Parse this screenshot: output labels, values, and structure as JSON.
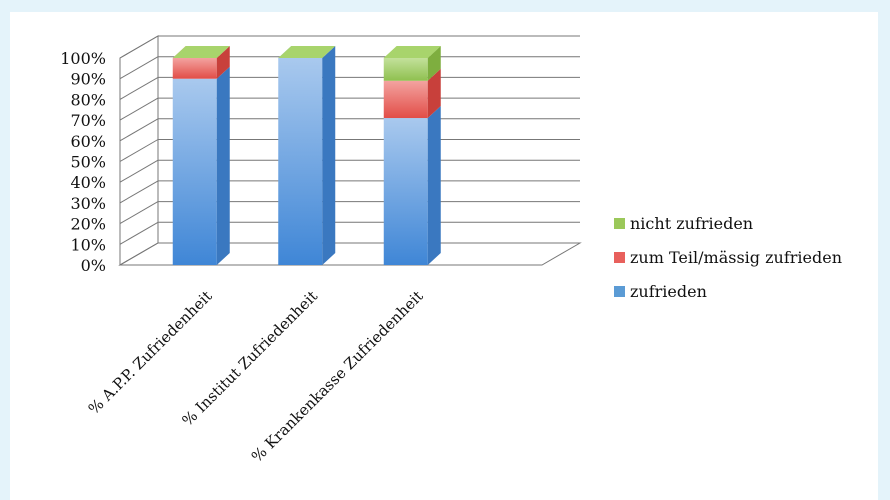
{
  "chart_data": {
    "type": "bar",
    "stacked": true,
    "three_d": true,
    "categories": [
      "% A.P.P. Zufriedenheit",
      "% Institut Zufriedenheit",
      "% Krankenkasse Zufriedenheit"
    ],
    "series": [
      {
        "name": "zufrieden",
        "values": [
          90,
          100,
          71
        ],
        "color": "#5b9bd5"
      },
      {
        "name": "zum Teil/mässig zufrieden",
        "values": [
          10,
          0,
          18
        ],
        "color": "#e8605c"
      },
      {
        "name": "nicht zufrieden",
        "values": [
          0,
          0,
          11
        ],
        "color": "#9bc85a"
      }
    ],
    "yticks": [
      "0%",
      "10%",
      "20%",
      "30%",
      "40%",
      "50%",
      "60%",
      "70%",
      "80%",
      "90%",
      "100%"
    ],
    "ylim": [
      0,
      100
    ],
    "grid": true,
    "legend_position": "right",
    "legend_order": [
      "nicht zufrieden",
      "zum Teil/mässig zufrieden",
      "zufrieden"
    ]
  }
}
